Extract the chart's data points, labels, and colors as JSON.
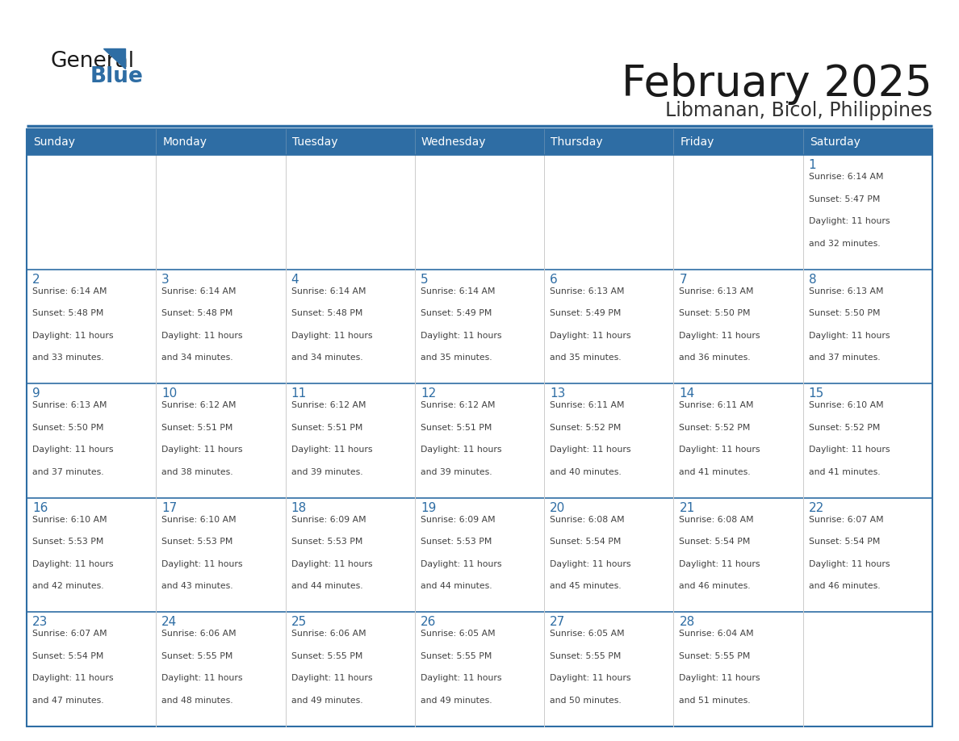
{
  "title": "February 2025",
  "subtitle": "Libmanan, Bicol, Philippines",
  "header_bg": "#2E6DA4",
  "header_text": "#FFFFFF",
  "cell_bg": "#FFFFFF",
  "day_number_color": "#2E6DA4",
  "body_text_color": "#404040",
  "row_sep_color": "#2E6DA4",
  "col_sep_color": "#CCCCCC",
  "days_of_week": [
    "Sunday",
    "Monday",
    "Tuesday",
    "Wednesday",
    "Thursday",
    "Friday",
    "Saturday"
  ],
  "calendar": [
    [
      null,
      null,
      null,
      null,
      null,
      null,
      1
    ],
    [
      2,
      3,
      4,
      5,
      6,
      7,
      8
    ],
    [
      9,
      10,
      11,
      12,
      13,
      14,
      15
    ],
    [
      16,
      17,
      18,
      19,
      20,
      21,
      22
    ],
    [
      23,
      24,
      25,
      26,
      27,
      28,
      null
    ]
  ],
  "sun_data": {
    "1": {
      "rise": "6:14 AM",
      "set": "5:47 PM",
      "daylight": "11 hours and 32 minutes."
    },
    "2": {
      "rise": "6:14 AM",
      "set": "5:48 PM",
      "daylight": "11 hours and 33 minutes."
    },
    "3": {
      "rise": "6:14 AM",
      "set": "5:48 PM",
      "daylight": "11 hours and 34 minutes."
    },
    "4": {
      "rise": "6:14 AM",
      "set": "5:48 PM",
      "daylight": "11 hours and 34 minutes."
    },
    "5": {
      "rise": "6:14 AM",
      "set": "5:49 PM",
      "daylight": "11 hours and 35 minutes."
    },
    "6": {
      "rise": "6:13 AM",
      "set": "5:49 PM",
      "daylight": "11 hours and 35 minutes."
    },
    "7": {
      "rise": "6:13 AM",
      "set": "5:50 PM",
      "daylight": "11 hours and 36 minutes."
    },
    "8": {
      "rise": "6:13 AM",
      "set": "5:50 PM",
      "daylight": "11 hours and 37 minutes."
    },
    "9": {
      "rise": "6:13 AM",
      "set": "5:50 PM",
      "daylight": "11 hours and 37 minutes."
    },
    "10": {
      "rise": "6:12 AM",
      "set": "5:51 PM",
      "daylight": "11 hours and 38 minutes."
    },
    "11": {
      "rise": "6:12 AM",
      "set": "5:51 PM",
      "daylight": "11 hours and 39 minutes."
    },
    "12": {
      "rise": "6:12 AM",
      "set": "5:51 PM",
      "daylight": "11 hours and 39 minutes."
    },
    "13": {
      "rise": "6:11 AM",
      "set": "5:52 PM",
      "daylight": "11 hours and 40 minutes."
    },
    "14": {
      "rise": "6:11 AM",
      "set": "5:52 PM",
      "daylight": "11 hours and 41 minutes."
    },
    "15": {
      "rise": "6:10 AM",
      "set": "5:52 PM",
      "daylight": "11 hours and 41 minutes."
    },
    "16": {
      "rise": "6:10 AM",
      "set": "5:53 PM",
      "daylight": "11 hours and 42 minutes."
    },
    "17": {
      "rise": "6:10 AM",
      "set": "5:53 PM",
      "daylight": "11 hours and 43 minutes."
    },
    "18": {
      "rise": "6:09 AM",
      "set": "5:53 PM",
      "daylight": "11 hours and 44 minutes."
    },
    "19": {
      "rise": "6:09 AM",
      "set": "5:53 PM",
      "daylight": "11 hours and 44 minutes."
    },
    "20": {
      "rise": "6:08 AM",
      "set": "5:54 PM",
      "daylight": "11 hours and 45 minutes."
    },
    "21": {
      "rise": "6:08 AM",
      "set": "5:54 PM",
      "daylight": "11 hours and 46 minutes."
    },
    "22": {
      "rise": "6:07 AM",
      "set": "5:54 PM",
      "daylight": "11 hours and 46 minutes."
    },
    "23": {
      "rise": "6:07 AM",
      "set": "5:54 PM",
      "daylight": "11 hours and 47 minutes."
    },
    "24": {
      "rise": "6:06 AM",
      "set": "5:55 PM",
      "daylight": "11 hours and 48 minutes."
    },
    "25": {
      "rise": "6:06 AM",
      "set": "5:55 PM",
      "daylight": "11 hours and 49 minutes."
    },
    "26": {
      "rise": "6:05 AM",
      "set": "5:55 PM",
      "daylight": "11 hours and 49 minutes."
    },
    "27": {
      "rise": "6:05 AM",
      "set": "5:55 PM",
      "daylight": "11 hours and 50 minutes."
    },
    "28": {
      "rise": "6:04 AM",
      "set": "5:55 PM",
      "daylight": "11 hours and 51 minutes."
    }
  }
}
